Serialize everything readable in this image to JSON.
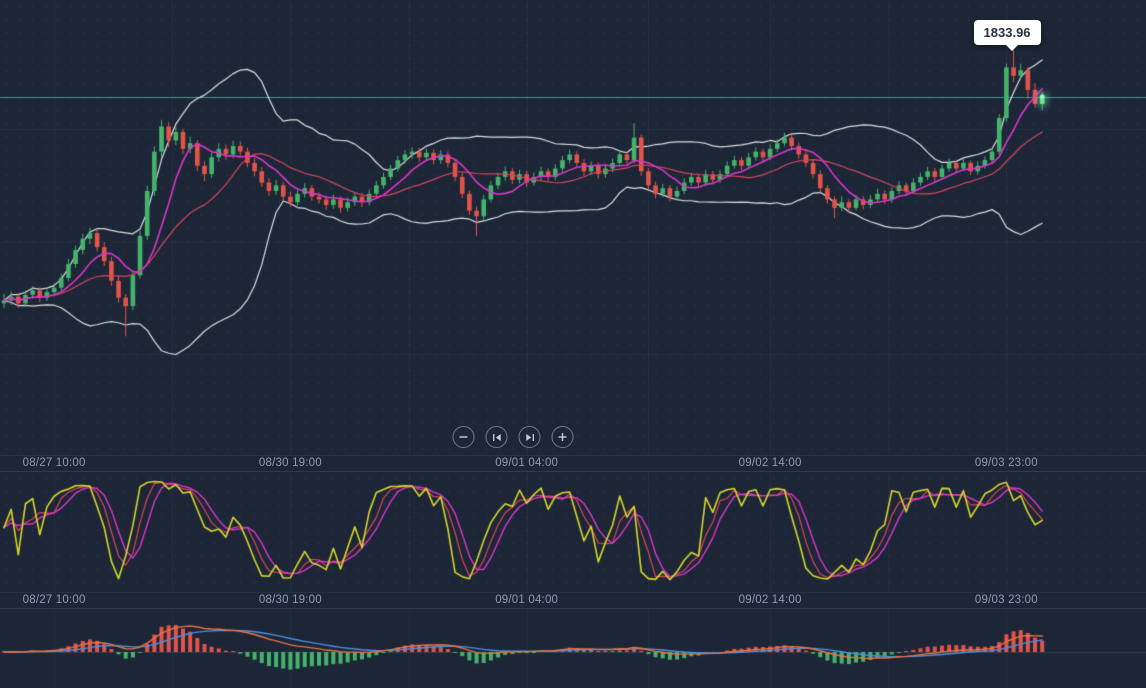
{
  "colors": {
    "background": "#1c2637",
    "candle_up": "#45b36b",
    "candle_down": "#e2544a",
    "bollinger": "rgba(255,255,255,0.85)",
    "current_price_line": "rgba(96,235,210,0.55)",
    "grid": "rgba(255,255,255,0.045)",
    "axis_text": "#8b9cb5",
    "last_candle_glow": "#8effc1"
  },
  "time_axis": {
    "labels": [
      "08/27 10:00",
      "08/30 19:00",
      "09/01 04:00",
      "09/02 14:00",
      "09/03 23:00"
    ],
    "indices": [
      7,
      40,
      73,
      107,
      140
    ]
  },
  "controls": {
    "items": [
      {
        "name": "zoom-out"
      },
      {
        "name": "step-back"
      },
      {
        "name": "step-forward"
      },
      {
        "name": "zoom-in"
      }
    ]
  },
  "chart_data": {
    "type": "candlestick",
    "price_marker": {
      "value": "1833.96",
      "candle_index": 141
    },
    "current_price": 1825.8,
    "price_range": {
      "min": 1762,
      "max": 1843
    },
    "grid_prices": [
      1820,
      1800,
      1780
    ],
    "indicators": {
      "bollinger": {
        "period": 20,
        "stddev": 2,
        "color": "rgba(255,255,255,0.85)"
      },
      "ma_fast": {
        "period": 7,
        "color": "#d936c9"
      },
      "ma_slow": {
        "period": 16,
        "color": "#d8455e"
      },
      "stochastic": {
        "k_period": 9,
        "d_period": 3,
        "colors": {
          "k": "#d6d62a",
          "d": "#d8455e",
          "slow": "#d936c9"
        },
        "range": [
          0,
          100
        ]
      },
      "macd": {
        "fast": 12,
        "slow": 26,
        "signal": 9,
        "colors": {
          "macd": "#e8743e",
          "signal": "#4a8fe2",
          "hist_pos": "#e2544a",
          "hist_neg": "#45b36b"
        }
      }
    },
    "candles": [
      [
        1789.0,
        1790.6,
        1788.2,
        1789.5
      ],
      [
        1789.5,
        1791.0,
        1788.8,
        1790.2
      ],
      [
        1790.2,
        1790.8,
        1788.3,
        1789.0
      ],
      [
        1789.0,
        1791.2,
        1788.5,
        1790.5
      ],
      [
        1790.5,
        1792.0,
        1789.9,
        1791.3
      ],
      [
        1791.3,
        1791.8,
        1789.3,
        1790.0
      ],
      [
        1790.0,
        1791.8,
        1789.5,
        1791.0
      ],
      [
        1791.0,
        1792.5,
        1790.3,
        1791.8
      ],
      [
        1791.8,
        1794.2,
        1791.2,
        1793.5
      ],
      [
        1793.5,
        1796.8,
        1793.0,
        1796.0
      ],
      [
        1796.0,
        1799.2,
        1795.4,
        1798.5
      ],
      [
        1798.5,
        1801.3,
        1797.8,
        1800.5
      ],
      [
        1800.5,
        1802.4,
        1799.6,
        1801.5
      ],
      [
        1801.5,
        1802.0,
        1798.3,
        1799.0
      ],
      [
        1799.0,
        1799.8,
        1795.7,
        1796.5
      ],
      [
        1796.5,
        1797.2,
        1792.2,
        1793.0
      ],
      [
        1793.0,
        1793.8,
        1789.2,
        1790.0
      ],
      [
        1790.0,
        1790.6,
        1783.2,
        1788.5
      ],
      [
        1788.5,
        1794.8,
        1787.9,
        1794.0
      ],
      [
        1794.0,
        1801.8,
        1793.5,
        1801.0
      ],
      [
        1801.0,
        1809.9,
        1800.4,
        1809.0
      ],
      [
        1809.0,
        1816.8,
        1808.2,
        1816.0
      ],
      [
        1816.0,
        1821.6,
        1815.2,
        1820.5
      ],
      [
        1820.5,
        1821.2,
        1816.9,
        1818.0
      ],
      [
        1818.0,
        1820.5,
        1817.2,
        1819.5
      ],
      [
        1819.5,
        1820.0,
        1815.6,
        1816.5
      ],
      [
        1816.5,
        1818.6,
        1815.8,
        1817.5
      ],
      [
        1817.5,
        1818.0,
        1812.6,
        1813.5
      ],
      [
        1813.5,
        1814.2,
        1810.8,
        1812.0
      ],
      [
        1812.0,
        1815.8,
        1811.4,
        1815.0
      ],
      [
        1815.0,
        1817.4,
        1814.3,
        1816.5
      ],
      [
        1816.5,
        1817.2,
        1814.6,
        1815.5
      ],
      [
        1815.5,
        1817.9,
        1814.9,
        1817.0
      ],
      [
        1817.0,
        1817.8,
        1815.2,
        1816.0
      ],
      [
        1816.0,
        1816.6,
        1813.3,
        1814.0
      ],
      [
        1814.0,
        1814.8,
        1811.7,
        1812.5
      ],
      [
        1812.5,
        1813.2,
        1809.8,
        1810.5
      ],
      [
        1810.5,
        1811.2,
        1808.2,
        1809.0
      ],
      [
        1809.0,
        1810.9,
        1808.4,
        1810.0
      ],
      [
        1810.0,
        1810.5,
        1807.3,
        1808.0
      ],
      [
        1808.0,
        1808.8,
        1806.2,
        1807.0
      ],
      [
        1807.0,
        1809.3,
        1806.5,
        1808.5
      ],
      [
        1808.5,
        1810.3,
        1807.9,
        1809.5
      ],
      [
        1809.5,
        1810.0,
        1807.3,
        1808.0
      ],
      [
        1808.0,
        1808.7,
        1806.8,
        1807.5
      ],
      [
        1807.5,
        1808.1,
        1805.7,
        1806.5
      ],
      [
        1806.5,
        1808.3,
        1805.9,
        1807.5
      ],
      [
        1807.5,
        1808.0,
        1805.2,
        1806.0
      ],
      [
        1806.0,
        1807.8,
        1805.4,
        1807.0
      ],
      [
        1807.0,
        1808.7,
        1806.4,
        1808.0
      ],
      [
        1808.0,
        1808.6,
        1806.2,
        1807.0
      ],
      [
        1807.0,
        1809.2,
        1806.5,
        1808.5
      ],
      [
        1808.5,
        1810.7,
        1808.0,
        1810.0
      ],
      [
        1810.0,
        1812.2,
        1809.5,
        1811.5
      ],
      [
        1811.5,
        1813.6,
        1811.0,
        1813.0
      ],
      [
        1813.0,
        1815.2,
        1812.5,
        1814.5
      ],
      [
        1814.5,
        1816.2,
        1813.9,
        1815.5
      ],
      [
        1815.5,
        1816.7,
        1814.8,
        1816.0
      ],
      [
        1816.0,
        1816.6,
        1814.3,
        1815.0
      ],
      [
        1815.0,
        1816.5,
        1814.4,
        1815.8
      ],
      [
        1815.8,
        1816.3,
        1813.8,
        1814.5
      ],
      [
        1814.5,
        1816.2,
        1813.9,
        1815.5
      ],
      [
        1815.5,
        1816.0,
        1813.3,
        1814.0
      ],
      [
        1814.0,
        1814.5,
        1810.8,
        1811.5
      ],
      [
        1811.5,
        1812.2,
        1807.8,
        1808.5
      ],
      [
        1808.5,
        1809.0,
        1804.8,
        1805.5
      ],
      [
        1805.5,
        1806.2,
        1801.0,
        1804.5
      ],
      [
        1804.5,
        1808.2,
        1804.0,
        1807.5
      ],
      [
        1807.5,
        1810.7,
        1807.0,
        1810.0
      ],
      [
        1810.0,
        1812.2,
        1809.4,
        1811.5
      ],
      [
        1811.5,
        1813.3,
        1810.9,
        1812.5
      ],
      [
        1812.5,
        1813.0,
        1810.3,
        1811.0
      ],
      [
        1811.0,
        1812.7,
        1810.4,
        1812.0
      ],
      [
        1812.0,
        1812.5,
        1809.8,
        1810.5
      ],
      [
        1810.5,
        1812.2,
        1810.0,
        1811.5
      ],
      [
        1811.5,
        1813.2,
        1810.9,
        1812.5
      ],
      [
        1812.5,
        1813.0,
        1810.8,
        1811.5
      ],
      [
        1811.5,
        1813.7,
        1811.0,
        1813.0
      ],
      [
        1813.0,
        1815.2,
        1812.5,
        1814.5
      ],
      [
        1814.5,
        1816.3,
        1814.0,
        1815.5
      ],
      [
        1815.5,
        1816.0,
        1813.4,
        1814.0
      ],
      [
        1814.0,
        1814.6,
        1811.8,
        1812.5
      ],
      [
        1812.5,
        1814.2,
        1811.9,
        1813.5
      ],
      [
        1813.5,
        1814.0,
        1811.3,
        1812.0
      ],
      [
        1812.0,
        1813.7,
        1811.4,
        1813.0
      ],
      [
        1813.0,
        1814.7,
        1812.4,
        1814.0
      ],
      [
        1814.0,
        1816.2,
        1813.5,
        1815.5
      ],
      [
        1815.5,
        1816.0,
        1813.8,
        1814.5
      ],
      [
        1814.5,
        1821.0,
        1814.0,
        1818.5
      ],
      [
        1818.5,
        1819.0,
        1811.8,
        1812.5
      ],
      [
        1812.5,
        1813.0,
        1809.3,
        1810.0
      ],
      [
        1810.0,
        1810.6,
        1807.8,
        1808.5
      ],
      [
        1808.5,
        1810.2,
        1808.0,
        1809.5
      ],
      [
        1809.5,
        1810.0,
        1807.3,
        1808.0
      ],
      [
        1808.0,
        1809.7,
        1807.4,
        1809.0
      ],
      [
        1809.0,
        1811.2,
        1808.5,
        1810.5
      ],
      [
        1810.5,
        1812.2,
        1810.0,
        1811.5
      ],
      [
        1811.5,
        1812.0,
        1809.8,
        1810.5
      ],
      [
        1810.5,
        1812.7,
        1810.0,
        1812.0
      ],
      [
        1812.0,
        1812.5,
        1810.3,
        1811.0
      ],
      [
        1811.0,
        1812.7,
        1810.5,
        1812.0
      ],
      [
        1812.0,
        1814.2,
        1811.6,
        1813.5
      ],
      [
        1813.5,
        1815.2,
        1813.0,
        1814.5
      ],
      [
        1814.5,
        1815.0,
        1812.8,
        1813.5
      ],
      [
        1813.5,
        1815.7,
        1813.0,
        1815.0
      ],
      [
        1815.0,
        1816.7,
        1814.5,
        1816.0
      ],
      [
        1816.0,
        1816.5,
        1814.3,
        1815.0
      ],
      [
        1815.0,
        1817.2,
        1814.6,
        1816.5
      ],
      [
        1816.5,
        1818.2,
        1816.0,
        1817.5
      ],
      [
        1817.5,
        1819.3,
        1817.0,
        1818.5
      ],
      [
        1818.5,
        1819.0,
        1816.3,
        1817.0
      ],
      [
        1817.0,
        1817.6,
        1814.8,
        1815.5
      ],
      [
        1815.5,
        1816.1,
        1813.3,
        1814.0
      ],
      [
        1814.0,
        1814.5,
        1811.3,
        1812.0
      ],
      [
        1812.0,
        1812.6,
        1808.8,
        1809.5
      ],
      [
        1809.5,
        1810.0,
        1806.8,
        1807.5
      ],
      [
        1807.5,
        1808.0,
        1804.2,
        1806.0
      ],
      [
        1806.0,
        1808.0,
        1805.5,
        1807.0
      ],
      [
        1807.0,
        1807.5,
        1805.2,
        1806.0
      ],
      [
        1806.0,
        1808.2,
        1805.6,
        1807.5
      ],
      [
        1807.5,
        1808.0,
        1805.8,
        1806.5
      ],
      [
        1806.5,
        1808.2,
        1806.0,
        1807.5
      ],
      [
        1807.5,
        1809.3,
        1807.0,
        1808.5
      ],
      [
        1808.5,
        1809.0,
        1806.8,
        1807.5
      ],
      [
        1807.5,
        1809.6,
        1807.0,
        1809.0
      ],
      [
        1809.0,
        1810.7,
        1808.5,
        1810.0
      ],
      [
        1810.0,
        1810.5,
        1808.3,
        1809.0
      ],
      [
        1809.0,
        1811.2,
        1808.6,
        1810.5
      ],
      [
        1810.5,
        1812.2,
        1810.0,
        1811.5
      ],
      [
        1811.5,
        1813.2,
        1811.0,
        1812.5
      ],
      [
        1812.5,
        1813.0,
        1810.8,
        1811.5
      ],
      [
        1811.5,
        1813.6,
        1811.0,
        1813.0
      ],
      [
        1813.0,
        1814.7,
        1812.5,
        1814.0
      ],
      [
        1814.0,
        1814.5,
        1812.3,
        1813.0
      ],
      [
        1813.0,
        1814.7,
        1812.6,
        1814.0
      ],
      [
        1814.0,
        1814.4,
        1811.9,
        1812.5
      ],
      [
        1812.5,
        1814.2,
        1812.0,
        1813.5
      ],
      [
        1813.5,
        1815.1,
        1813.0,
        1814.5
      ],
      [
        1814.5,
        1816.6,
        1814.0,
        1816.0
      ],
      [
        1816.0,
        1822.6,
        1815.5,
        1822.0
      ],
      [
        1822.0,
        1831.6,
        1821.4,
        1831.0
      ],
      [
        1831.0,
        1834.0,
        1828.4,
        1829.5
      ],
      [
        1829.5,
        1831.6,
        1828.9,
        1830.5
      ],
      [
        1830.5,
        1831.0,
        1825.4,
        1827.0
      ],
      [
        1827.0,
        1828.1,
        1823.9,
        1824.5
      ],
      [
        1824.5,
        1826.6,
        1823.4,
        1825.8
      ]
    ]
  }
}
